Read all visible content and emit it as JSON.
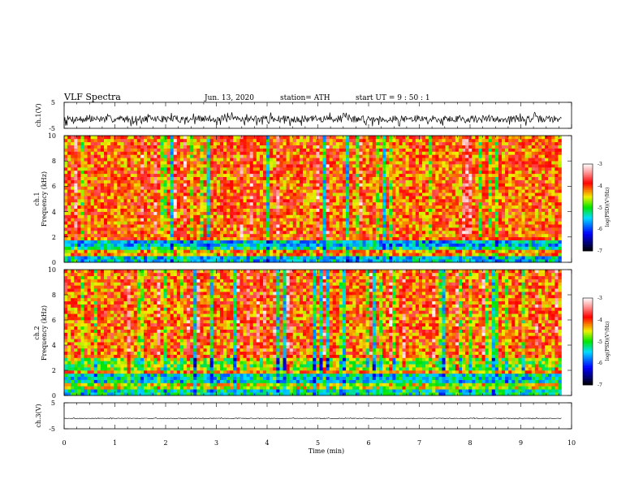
{
  "header": {
    "title": "VLF  Spectra",
    "date": "Jun. 13, 2020",
    "station": "station= ATH",
    "start": "start  UT  =    9  : 50 : 1"
  },
  "chart_data": [
    {
      "type": "line",
      "ylabel": "ch.1(V)",
      "ylim": [
        -5,
        5
      ],
      "yticks": [
        "5",
        "-5"
      ],
      "baseline": -1.4,
      "amplitude": 2.2,
      "xlim": [
        0,
        10
      ],
      "data_end": 9.8
    },
    {
      "type": "heatmap",
      "ylabel": [
        "ch.1",
        "Frequency  (kHz)"
      ],
      "ylim": [
        0,
        10
      ],
      "yticks": [
        "0",
        "2",
        "4",
        "6",
        "8",
        "10"
      ],
      "xlim": [
        0,
        10
      ],
      "data_end": 9.8,
      "bands": [
        {
          "from": 0,
          "to": 0.5,
          "value": -5.5
        },
        {
          "from": 0.5,
          "to": 0.9,
          "value": -4.3
        },
        {
          "from": 0.9,
          "to": 1.2,
          "value": -5.2
        },
        {
          "from": 1.2,
          "to": 1.8,
          "value": -5.6
        },
        {
          "from": 1.8,
          "to": 10,
          "value": -4.1
        }
      ],
      "colorbar": {
        "label": "log(PSD)(V²/Hz)",
        "range": [
          -7,
          -3
        ],
        "ticks": [
          "-3",
          "-4",
          "-5",
          "-6",
          "-7"
        ]
      }
    },
    {
      "type": "heatmap",
      "ylabel": [
        "ch.2",
        "Frequency  (kHz)"
      ],
      "ylim": [
        0,
        10
      ],
      "yticks": [
        "0",
        "2",
        "4",
        "6",
        "8",
        "10"
      ],
      "xlim": [
        0,
        10
      ],
      "data_end": 9.8,
      "bands": [
        {
          "from": 0,
          "to": 0.5,
          "value": -5.3
        },
        {
          "from": 0.5,
          "to": 1.0,
          "value": -4.6
        },
        {
          "from": 1.0,
          "to": 1.8,
          "value": -5.4
        },
        {
          "from": 1.8,
          "to": 2.0,
          "value": -4.2
        },
        {
          "from": 2.0,
          "to": 3.0,
          "value": -4.8
        },
        {
          "from": 3.0,
          "to": 10,
          "value": -4.1
        }
      ],
      "colorbar": {
        "label": "log(PSD)(V²/Hz)",
        "range": [
          -7,
          -3
        ],
        "ticks": [
          "-3",
          "-4",
          "-5",
          "-6",
          "-7"
        ]
      }
    },
    {
      "type": "line",
      "ylabel": "ch.3(V)",
      "ylim": [
        -5,
        5
      ],
      "yticks": [
        "5",
        "-5"
      ],
      "baseline": -1.0,
      "amplitude": 0.2,
      "xlim": [
        0,
        10
      ],
      "data_end": 9.8,
      "xlabel": "Time  (min)",
      "xticks": [
        "0",
        "1",
        "2",
        "3",
        "4",
        "5",
        "6",
        "7",
        "8",
        "9",
        "10"
      ]
    }
  ]
}
